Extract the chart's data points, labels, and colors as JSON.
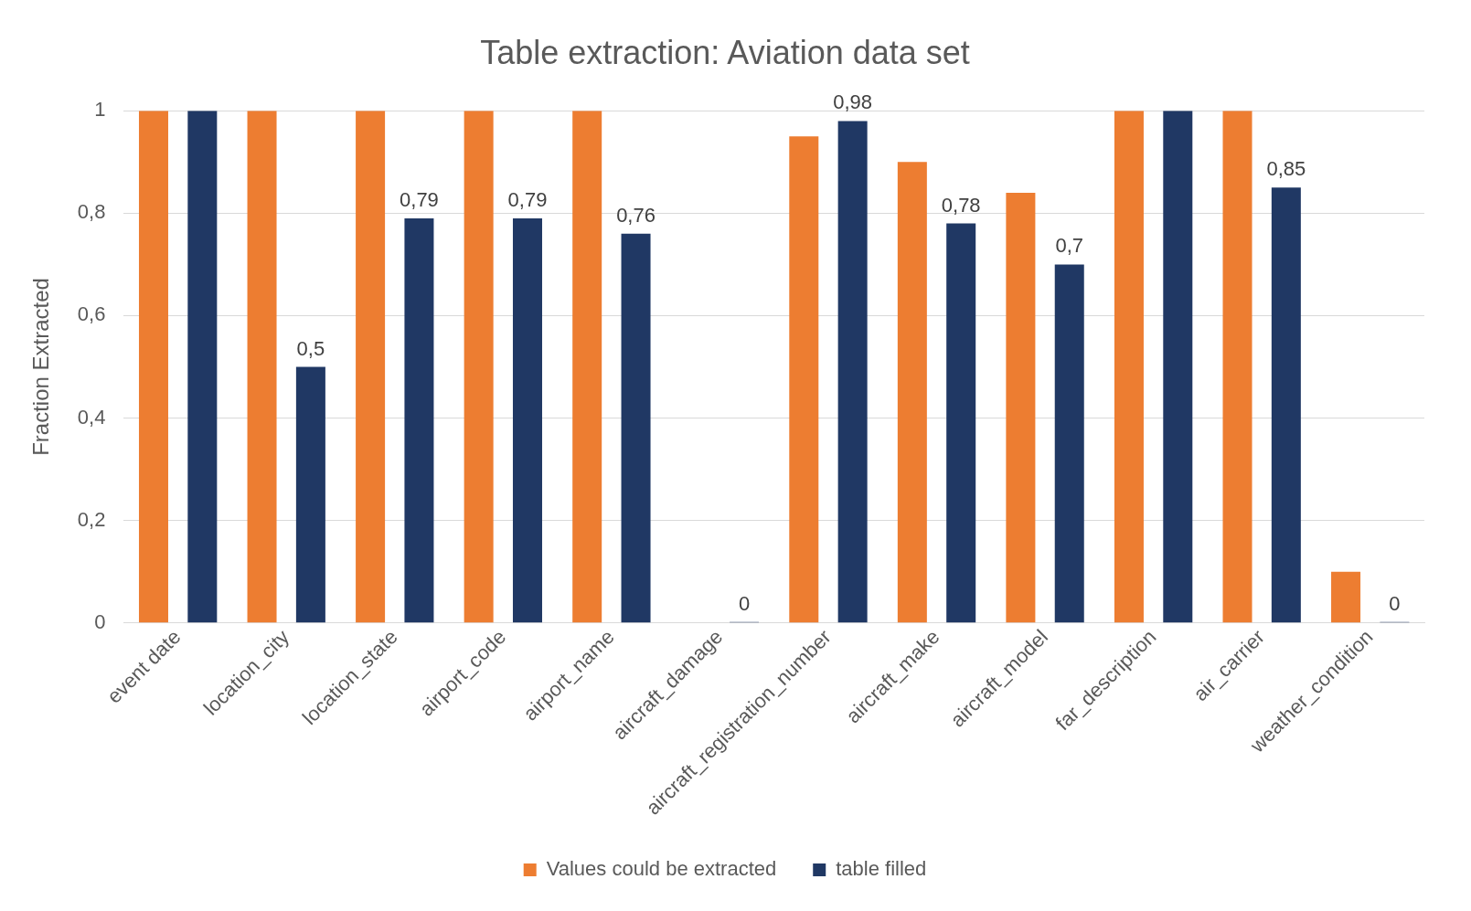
{
  "chart_data": {
    "type": "bar",
    "title": "Table extraction: Aviation data set",
    "ylabel": "Fraction Extracted",
    "categories": [
      "event date",
      "location_city",
      "location_state",
      "airport_code",
      "airport_name",
      "aircraft_damage",
      "aircraft_registration_number",
      "aircraft_make",
      "aircraft_model",
      "far_description",
      "air_carrier",
      "weather_condition"
    ],
    "series": [
      {
        "name": "Values could be extracted",
        "color": "#ed7d31",
        "values": [
          1,
          1,
          1,
          1,
          1,
          0,
          0.95,
          0.9,
          0.84,
          1,
          1,
          0.1
        ]
      },
      {
        "name": "table filled",
        "color": "#203864",
        "values": [
          1,
          0.5,
          0.79,
          0.79,
          0.76,
          0,
          0.98,
          0.78,
          0.7,
          1,
          0.85,
          0
        ],
        "value_labels": [
          null,
          "0,5",
          "0,79",
          "0,79",
          "0,76",
          "0",
          "0,98",
          "0,78",
          "0,7",
          null,
          "0,85",
          "0"
        ]
      }
    ],
    "ylim": [
      0,
      1
    ],
    "yticks": [
      0,
      {
        "value": 0.2,
        "label": "0,2"
      },
      {
        "value": 0.4,
        "label": "0,4"
      },
      {
        "value": 0.6,
        "label": "0,6"
      },
      {
        "value": 0.8,
        "label": "0,8"
      },
      1
    ],
    "grid": "y",
    "legend": "bottom"
  }
}
